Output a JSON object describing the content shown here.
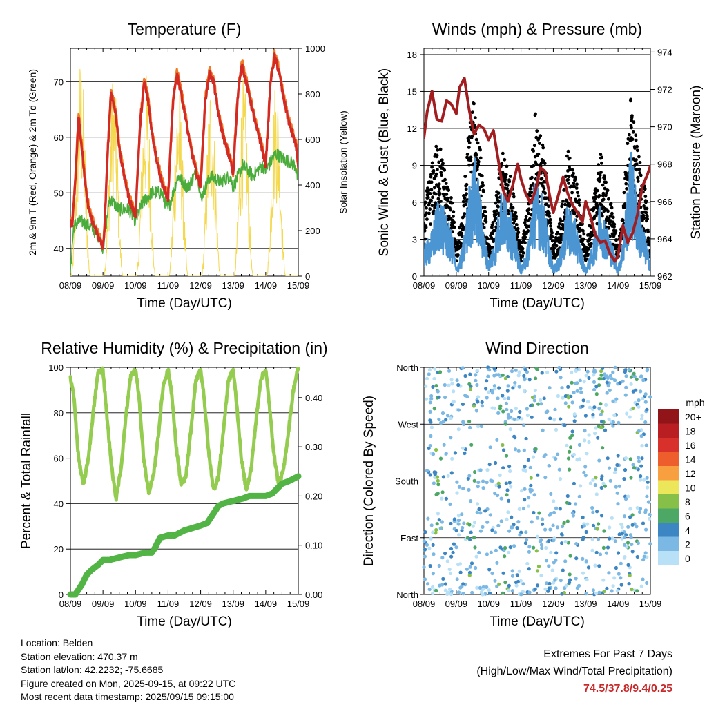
{
  "days": [
    "08/09",
    "09/09",
    "10/09",
    "11/09",
    "12/09",
    "13/09",
    "14/09",
    "15/09"
  ],
  "xlabel": "Time (Day/UTC)",
  "colors": {
    "temp2m": "#d42a24",
    "temp9m": "#f07a28",
    "dewpoint": "#4aac3a",
    "solar": "#f4d84e",
    "sonic": "#4a95d2",
    "gust": "#000000",
    "pressure": "#a11d20",
    "rh": "#94cc50",
    "precip": "#52b444",
    "extremes": "#c8282a"
  },
  "chart_data": [
    {
      "id": "temperature",
      "type": "line",
      "title": "Temperature (F)",
      "ylabel": "2m & 9m T (Red, Orange) & 2m Td (Green)",
      "y2label": "Solar Insolation (Yellow)",
      "ylim": [
        35,
        76
      ],
      "yticks": [
        40,
        50,
        60,
        70
      ],
      "y2lim": [
        0,
        1000
      ],
      "y2ticks": [
        0,
        200,
        400,
        600,
        800,
        1000
      ],
      "grid": true,
      "series": [
        {
          "key": "t2m",
          "x": [
            0.0,
            0.05,
            0.15,
            0.25,
            0.35,
            0.5,
            0.65,
            0.8,
            0.93,
            1.0,
            1.05,
            1.15,
            1.25,
            1.4,
            1.5,
            1.65,
            1.8,
            1.92,
            2.0,
            2.05,
            2.15,
            2.27,
            2.4,
            2.5,
            2.65,
            2.8,
            2.92,
            3.0,
            3.05,
            3.15,
            3.27,
            3.4,
            3.55,
            3.7,
            3.85,
            3.95,
            4.0,
            4.05,
            4.15,
            4.27,
            4.4,
            4.55,
            4.7,
            4.85,
            4.95,
            5.0,
            5.05,
            5.15,
            5.27,
            5.4,
            5.55,
            5.7,
            5.85,
            5.95,
            6.0,
            6.05,
            6.15,
            6.27,
            6.4,
            6.55,
            6.7,
            6.85,
            6.95,
            7.0
          ],
          "values": [
            45,
            44,
            52,
            64,
            58,
            49,
            45,
            43,
            41,
            40,
            44,
            58,
            68,
            64,
            58,
            53,
            49,
            47,
            46,
            52,
            63,
            70,
            66,
            61,
            56,
            52,
            50,
            49,
            55,
            66,
            71.5,
            68,
            63,
            58,
            54,
            52,
            51,
            57,
            67,
            71.5,
            70,
            64,
            60,
            57,
            55,
            53,
            59,
            68,
            73,
            70,
            66,
            62,
            59,
            56,
            55,
            60,
            70,
            74.5,
            72,
            67,
            63,
            60,
            58,
            54
          ]
        },
        {
          "key": "dewpoint",
          "x": [
            0.0,
            0.1,
            0.3,
            0.6,
            0.9,
            1.0,
            1.2,
            1.5,
            1.8,
            2.0,
            2.2,
            2.5,
            2.8,
            3.0,
            3.3,
            3.6,
            3.9,
            4.0,
            4.3,
            4.6,
            4.9,
            5.0,
            5.3,
            5.6,
            5.9,
            6.0,
            6.3,
            6.6,
            6.9,
            7.0
          ],
          "values": [
            36,
            44,
            45,
            44,
            42,
            40,
            49,
            47,
            47,
            45,
            48,
            50,
            50,
            47,
            53,
            51,
            54,
            49,
            53,
            52,
            53,
            51,
            55,
            53,
            55,
            54,
            57,
            56,
            55,
            52
          ]
        },
        {
          "key": "solar",
          "peaks": [
            0.32,
            1.32,
            2.32,
            3.32,
            4.32,
            5.32,
            6.32
          ],
          "amps": [
            980,
            920,
            900,
            860,
            880,
            880,
            900
          ]
        }
      ]
    },
    {
      "id": "winds",
      "type": "line",
      "title": "Winds (mph) & Pressure (mb)",
      "ylabel": "Sonic Wind & Gust (Blue, Black)",
      "y2label": "Station Pressure (Maroon)",
      "ylim": [
        0,
        18.5
      ],
      "yticks": [
        0,
        3,
        6,
        9,
        12,
        15,
        18
      ],
      "y2lim": [
        962,
        974.2
      ],
      "y2ticks": [
        962,
        964,
        966,
        968,
        970,
        972,
        974
      ],
      "grid": true,
      "series": [
        {
          "key": "pressure",
          "x": [
            0.0,
            0.1,
            0.25,
            0.4,
            0.55,
            0.7,
            0.85,
            1.0,
            1.1,
            1.25,
            1.4,
            1.55,
            1.7,
            1.85,
            2.0,
            2.15,
            2.3,
            2.45,
            2.6,
            2.75,
            2.9,
            3.0,
            3.15,
            3.3,
            3.45,
            3.6,
            3.75,
            3.9,
            4.0,
            4.15,
            4.3,
            4.45,
            4.6,
            4.75,
            4.9,
            5.0,
            5.15,
            5.3,
            5.45,
            5.6,
            5.75,
            5.9,
            6.0,
            6.15,
            6.3,
            6.45,
            6.6,
            6.75,
            6.9,
            7.0
          ],
          "values": [
            969.4,
            970.8,
            971.9,
            970.4,
            970.3,
            971.4,
            971.2,
            970.7,
            972.1,
            972.6,
            970.9,
            969.6,
            970.1,
            969.9,
            969.3,
            969.8,
            968.2,
            966.6,
            966.0,
            966.9,
            968.0,
            967.2,
            966.4,
            965.9,
            966.6,
            967.8,
            967.6,
            966.2,
            965.4,
            966.3,
            967.3,
            966.4,
            965.8,
            965.4,
            964.9,
            966.0,
            965.2,
            964.2,
            963.8,
            963.9,
            963.2,
            962.8,
            963.1,
            964.7,
            963.8,
            964.3,
            965.3,
            966.8,
            967.4,
            967.9
          ]
        },
        {
          "key": "sonic",
          "x": [
            0.0,
            0.25,
            0.45,
            0.7,
            0.9,
            1.0,
            1.2,
            1.4,
            1.6,
            1.85,
            2.0,
            2.2,
            2.4,
            2.6,
            2.85,
            3.0,
            3.2,
            3.45,
            3.7,
            3.9,
            4.0,
            4.2,
            4.45,
            4.7,
            4.9,
            5.0,
            5.2,
            5.45,
            5.7,
            5.9,
            6.0,
            6.15,
            6.4,
            6.6,
            6.85,
            7.0
          ],
          "values": [
            2,
            3,
            5.5,
            4,
            2.5,
            0.5,
            2,
            6,
            8,
            3,
            1,
            2.5,
            6,
            5,
            2.5,
            0.5,
            2,
            7,
            5,
            2,
            0.5,
            1.5,
            5,
            3.5,
            1.5,
            0.5,
            2,
            5,
            3,
            1.5,
            0.5,
            2.5,
            8.5,
            5,
            2.5,
            1
          ]
        },
        {
          "key": "gust",
          "x": [
            0.0,
            0.25,
            0.45,
            0.7,
            0.9,
            1.0,
            1.2,
            1.4,
            1.6,
            1.85,
            2.0,
            2.2,
            2.4,
            2.6,
            2.85,
            3.0,
            3.2,
            3.45,
            3.7,
            3.9,
            4.0,
            4.2,
            4.45,
            4.7,
            4.9,
            5.0,
            5.2,
            5.45,
            5.7,
            5.9,
            6.0,
            6.15,
            6.4,
            6.6,
            6.85,
            7.0
          ],
          "values": [
            5,
            8,
            10,
            7,
            5,
            2,
            5,
            11,
            13,
            6,
            2,
            5,
            9,
            8,
            5,
            2,
            5,
            12,
            9,
            5,
            2,
            4,
            9,
            7,
            4,
            2,
            5,
            9,
            6,
            4,
            2,
            5,
            13,
            9,
            6,
            2
          ]
        }
      ]
    },
    {
      "id": "humidity",
      "type": "line",
      "title": "Relative Humidity (%) & Precipitation (in)",
      "ylabel": "Percent & Total Rainfall",
      "ylim": [
        0,
        100
      ],
      "yticks": [
        0,
        20,
        40,
        60,
        80,
        100
      ],
      "y2lim": [
        0,
        0.4615
      ],
      "y2ticks": [
        "0.00",
        "0.10",
        "0.20",
        "0.30",
        "0.40"
      ],
      "grid": true,
      "series": [
        {
          "key": "rh",
          "x": [
            0.0,
            0.1,
            0.25,
            0.4,
            0.55,
            0.7,
            0.85,
            1.0,
            1.1,
            1.25,
            1.4,
            1.55,
            1.7,
            1.85,
            2.0,
            2.1,
            2.25,
            2.4,
            2.55,
            2.7,
            2.85,
            3.0,
            3.1,
            3.25,
            3.4,
            3.55,
            3.7,
            3.85,
            4.0,
            4.1,
            4.25,
            4.4,
            4.55,
            4.7,
            4.85,
            5.0,
            5.1,
            5.25,
            5.4,
            5.55,
            5.7,
            5.85,
            6.0,
            6.1,
            6.25,
            6.4,
            6.55,
            6.7,
            6.85,
            7.0
          ],
          "values": [
            95,
            88,
            60,
            48,
            60,
            80,
            98,
            99,
            82,
            58,
            42,
            55,
            78,
            96,
            99,
            88,
            60,
            45,
            52,
            70,
            92,
            99,
            90,
            65,
            48,
            52,
            72,
            94,
            99,
            88,
            62,
            46,
            52,
            72,
            94,
            99,
            85,
            60,
            46,
            55,
            76,
            95,
            99,
            85,
            62,
            48,
            55,
            72,
            90,
            100
          ]
        },
        {
          "key": "precip",
          "x": [
            0.0,
            0.15,
            0.25,
            0.35,
            0.5,
            0.65,
            0.85,
            1.0,
            1.2,
            1.5,
            1.8,
            2.0,
            2.3,
            2.5,
            2.6,
            2.75,
            3.0,
            3.2,
            3.5,
            3.75,
            4.0,
            4.2,
            4.4,
            4.55,
            4.7,
            5.0,
            5.3,
            5.5,
            5.7,
            6.0,
            6.2,
            6.35,
            6.5,
            6.7,
            6.85,
            7.0
          ],
          "values": [
            0.0,
            0.0,
            0.01,
            0.02,
            0.04,
            0.05,
            0.06,
            0.07,
            0.07,
            0.075,
            0.08,
            0.08,
            0.085,
            0.085,
            0.095,
            0.115,
            0.12,
            0.12,
            0.13,
            0.135,
            0.14,
            0.145,
            0.165,
            0.18,
            0.185,
            0.19,
            0.195,
            0.2,
            0.2,
            0.2,
            0.205,
            0.215,
            0.225,
            0.23,
            0.235,
            0.24
          ]
        }
      ]
    },
    {
      "id": "direction",
      "type": "scatter",
      "title": "Wind Direction",
      "ylabel": "Direction (Colored By Speed)",
      "ytick_labels": [
        "North",
        "East",
        "South",
        "West",
        "North"
      ],
      "ylim": [
        0,
        360
      ],
      "grid": true,
      "legend": {
        "title": "mph",
        "labels": [
          "20+",
          "18",
          "16",
          "14",
          "12",
          "10",
          "8",
          "6",
          "4",
          "2",
          "0"
        ],
        "colors": [
          "#911418",
          "#b91e22",
          "#d8302a",
          "#ee5e2c",
          "#f8a040",
          "#ece75a",
          "#86c048",
          "#4ca864",
          "#3c86c4",
          "#7cb8e4",
          "#b8e0f6"
        ],
        "placement": "right"
      }
    }
  ],
  "info": {
    "location": "Location: Belden",
    "elevation": "Station elevation: 470.37 m",
    "latlon": "Station lat/lon: 42.2232; -75.6685",
    "created": "Figure created on Mon, 2025-09-15, at 09:22 UTC",
    "recent": "Most recent data timestamp: 2025/09/15 09:15:00"
  },
  "extremes": {
    "title": "Extremes For Past 7 Days",
    "subtitle": "(High/Low/Max Wind/Total Precipitation)",
    "values": "74.5/37.8/9.4/0.25"
  }
}
